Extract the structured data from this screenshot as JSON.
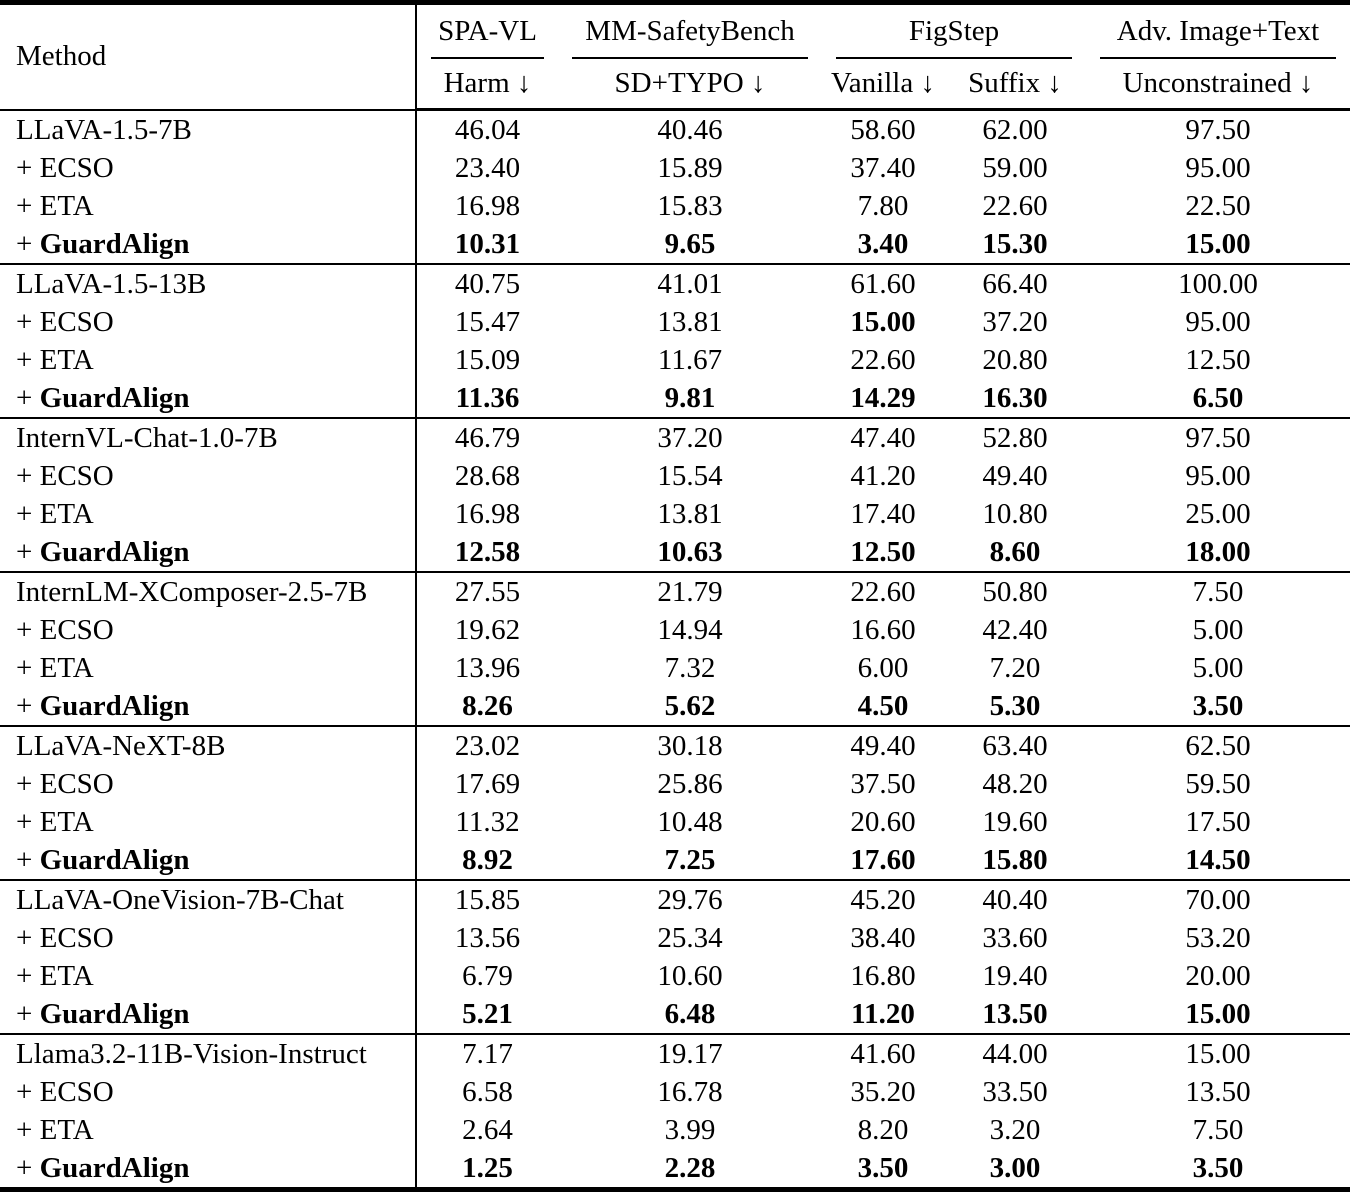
{
  "table": {
    "method_header": "Method",
    "col_groups": [
      {
        "label": "SPA-VL",
        "sub": [
          "Harm ↓"
        ]
      },
      {
        "label": "MM-SafetyBench",
        "sub": [
          "SD+TYPO ↓"
        ]
      },
      {
        "label": "FigStep",
        "sub": [
          "Vanilla ↓",
          "Suffix ↓"
        ]
      },
      {
        "label": "Adv. Image+Text",
        "sub": [
          "Unconstrained ↓"
        ]
      }
    ],
    "groups": [
      {
        "rows": [
          {
            "prefix": "",
            "name": "LLaVA-1.5-7B",
            "name_bold": false,
            "values": [
              "46.04",
              "40.46",
              "58.60",
              "62.00",
              "97.50"
            ],
            "bold": [
              false,
              false,
              false,
              false,
              false
            ]
          },
          {
            "prefix": "+ ",
            "name": "ECSO",
            "name_bold": false,
            "values": [
              "23.40",
              "15.89",
              "37.40",
              "59.00",
              "95.00"
            ],
            "bold": [
              false,
              false,
              false,
              false,
              false
            ]
          },
          {
            "prefix": "+ ",
            "name": "ETA",
            "name_bold": false,
            "values": [
              "16.98",
              "15.83",
              "7.80",
              "22.60",
              "22.50"
            ],
            "bold": [
              false,
              false,
              false,
              false,
              false
            ]
          },
          {
            "prefix": "+ ",
            "name": "GuardAlign",
            "name_bold": true,
            "values": [
              "10.31",
              "9.65",
              "3.40",
              "15.30",
              "15.00"
            ],
            "bold": [
              true,
              true,
              true,
              true,
              true
            ]
          }
        ]
      },
      {
        "rows": [
          {
            "prefix": "",
            "name": "LLaVA-1.5-13B",
            "name_bold": false,
            "values": [
              "40.75",
              "41.01",
              "61.60",
              "66.40",
              "100.00"
            ],
            "bold": [
              false,
              false,
              false,
              false,
              false
            ]
          },
          {
            "prefix": "+ ",
            "name": "ECSO",
            "name_bold": false,
            "values": [
              "15.47",
              "13.81",
              "15.00",
              "37.20",
              "95.00"
            ],
            "bold": [
              false,
              false,
              true,
              false,
              false
            ]
          },
          {
            "prefix": "+ ",
            "name": "ETA",
            "name_bold": false,
            "values": [
              "15.09",
              "11.67",
              "22.60",
              "20.80",
              "12.50"
            ],
            "bold": [
              false,
              false,
              false,
              false,
              false
            ]
          },
          {
            "prefix": "+ ",
            "name": "GuardAlign",
            "name_bold": true,
            "values": [
              "11.36",
              "9.81",
              "14.29",
              "16.30",
              "6.50"
            ],
            "bold": [
              true,
              true,
              true,
              true,
              true
            ]
          }
        ]
      },
      {
        "rows": [
          {
            "prefix": "",
            "name": "InternVL-Chat-1.0-7B",
            "name_bold": false,
            "values": [
              "46.79",
              "37.20",
              "47.40",
              "52.80",
              "97.50"
            ],
            "bold": [
              false,
              false,
              false,
              false,
              false
            ]
          },
          {
            "prefix": "+ ",
            "name": "ECSO",
            "name_bold": false,
            "values": [
              "28.68",
              "15.54",
              "41.20",
              "49.40",
              "95.00"
            ],
            "bold": [
              false,
              false,
              false,
              false,
              false
            ]
          },
          {
            "prefix": "+ ",
            "name": "ETA",
            "name_bold": false,
            "values": [
              "16.98",
              "13.81",
              "17.40",
              "10.80",
              "25.00"
            ],
            "bold": [
              false,
              false,
              false,
              false,
              false
            ]
          },
          {
            "prefix": "+ ",
            "name": "GuardAlign",
            "name_bold": true,
            "values": [
              "12.58",
              "10.63",
              "12.50",
              "8.60",
              "18.00"
            ],
            "bold": [
              true,
              true,
              true,
              true,
              true
            ]
          }
        ]
      },
      {
        "rows": [
          {
            "prefix": "",
            "name": "InternLM-XComposer-2.5-7B",
            "name_bold": false,
            "values": [
              "27.55",
              "21.79",
              "22.60",
              "50.80",
              "7.50"
            ],
            "bold": [
              false,
              false,
              false,
              false,
              false
            ]
          },
          {
            "prefix": "+ ",
            "name": "ECSO",
            "name_bold": false,
            "values": [
              "19.62",
              "14.94",
              "16.60",
              "42.40",
              "5.00"
            ],
            "bold": [
              false,
              false,
              false,
              false,
              false
            ]
          },
          {
            "prefix": "+ ",
            "name": "ETA",
            "name_bold": false,
            "values": [
              "13.96",
              "7.32",
              "6.00",
              "7.20",
              "5.00"
            ],
            "bold": [
              false,
              false,
              false,
              false,
              false
            ]
          },
          {
            "prefix": "+ ",
            "name": "GuardAlign",
            "name_bold": true,
            "values": [
              "8.26",
              "5.62",
              "4.50",
              "5.30",
              "3.50"
            ],
            "bold": [
              true,
              true,
              true,
              true,
              true
            ]
          }
        ]
      },
      {
        "rows": [
          {
            "prefix": "",
            "name": "LLaVA-NeXT-8B",
            "name_bold": false,
            "values": [
              "23.02",
              "30.18",
              "49.40",
              "63.40",
              "62.50"
            ],
            "bold": [
              false,
              false,
              false,
              false,
              false
            ]
          },
          {
            "prefix": "+ ",
            "name": "ECSO",
            "name_bold": false,
            "values": [
              "17.69",
              "25.86",
              "37.50",
              "48.20",
              "59.50"
            ],
            "bold": [
              false,
              false,
              false,
              false,
              false
            ]
          },
          {
            "prefix": "+ ",
            "name": "ETA",
            "name_bold": false,
            "values": [
              "11.32",
              "10.48",
              "20.60",
              "19.60",
              "17.50"
            ],
            "bold": [
              false,
              false,
              false,
              false,
              false
            ]
          },
          {
            "prefix": "+ ",
            "name": "GuardAlign",
            "name_bold": true,
            "values": [
              "8.92",
              "7.25",
              "17.60",
              "15.80",
              "14.50"
            ],
            "bold": [
              true,
              true,
              true,
              true,
              true
            ]
          }
        ]
      },
      {
        "rows": [
          {
            "prefix": "",
            "name": "LLaVA-OneVision-7B-Chat",
            "name_bold": false,
            "values": [
              "15.85",
              "29.76",
              "45.20",
              "40.40",
              "70.00"
            ],
            "bold": [
              false,
              false,
              false,
              false,
              false
            ]
          },
          {
            "prefix": "+ ",
            "name": "ECSO",
            "name_bold": false,
            "values": [
              "13.56",
              "25.34",
              "38.40",
              "33.60",
              "53.20"
            ],
            "bold": [
              false,
              false,
              false,
              false,
              false
            ]
          },
          {
            "prefix": "+ ",
            "name": "ETA",
            "name_bold": false,
            "values": [
              "6.79",
              "10.60",
              "16.80",
              "19.40",
              "20.00"
            ],
            "bold": [
              false,
              false,
              false,
              false,
              false
            ]
          },
          {
            "prefix": "+ ",
            "name": "GuardAlign",
            "name_bold": true,
            "values": [
              "5.21",
              "6.48",
              "11.20",
              "13.50",
              "15.00"
            ],
            "bold": [
              true,
              true,
              true,
              true,
              true
            ]
          }
        ]
      },
      {
        "rows": [
          {
            "prefix": "",
            "name": "Llama3.2-11B-Vision-Instruct",
            "name_bold": false,
            "values": [
              "7.17",
              "19.17",
              "41.60",
              "44.00",
              "15.00"
            ],
            "bold": [
              false,
              false,
              false,
              false,
              false
            ]
          },
          {
            "prefix": "+ ",
            "name": "ECSO",
            "name_bold": false,
            "values": [
              "6.58",
              "16.78",
              "35.20",
              "33.50",
              "13.50"
            ],
            "bold": [
              false,
              false,
              false,
              false,
              false
            ]
          },
          {
            "prefix": "+ ",
            "name": "ETA",
            "name_bold": false,
            "values": [
              "2.64",
              "3.99",
              "8.20",
              "3.20",
              "7.50"
            ],
            "bold": [
              false,
              false,
              false,
              false,
              false
            ]
          },
          {
            "prefix": "+ ",
            "name": "GuardAlign",
            "name_bold": true,
            "values": [
              "1.25",
              "2.28",
              "3.50",
              "3.00",
              "3.50"
            ],
            "bold": [
              true,
              true,
              true,
              true,
              true
            ]
          }
        ]
      }
    ]
  }
}
